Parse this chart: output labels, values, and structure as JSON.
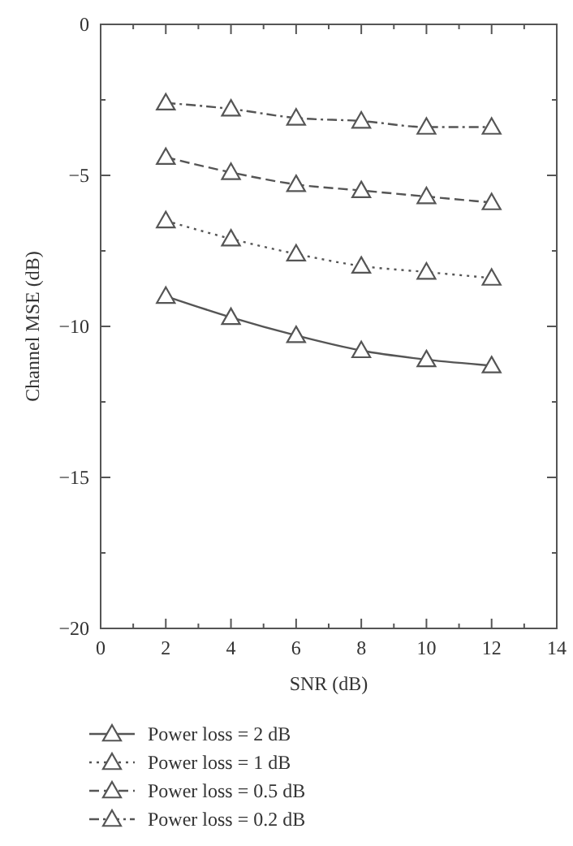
{
  "chart_data": {
    "type": "line",
    "xlabel": "SNR (dB)",
    "ylabel": "Channel MSE (dB)",
    "x": [
      2,
      4,
      6,
      8,
      10,
      12
    ],
    "series": [
      {
        "name": "Power loss = 2 dB",
        "color": "#555555",
        "line_style": "solid",
        "values": [
          -9.0,
          -9.7,
          -10.3,
          -10.8,
          -11.1,
          -11.3
        ]
      },
      {
        "name": "Power loss = 1 dB",
        "color": "#555555",
        "line_style": "dotted",
        "values": [
          -6.5,
          -7.1,
          -7.6,
          -8.0,
          -8.2,
          -8.4
        ]
      },
      {
        "name": "Power loss = 0.5 dB",
        "color": "#555555",
        "line_style": "dashed",
        "values": [
          -4.4,
          -4.9,
          -5.3,
          -5.5,
          -5.7,
          -5.9
        ]
      },
      {
        "name": "Power loss = 0.2 dB",
        "color": "#555555",
        "line_style": "dashdot",
        "values": [
          -2.6,
          -2.8,
          -3.1,
          -3.2,
          -3.4,
          -3.4
        ]
      }
    ],
    "marker": "triangle",
    "legend": "bottom",
    "grid": false,
    "xlim": [
      0,
      14
    ],
    "xticks": [
      0,
      {
        "value": 1,
        "label": null
      },
      2,
      {
        "value": 3,
        "label": null
      },
      4,
      {
        "value": 5,
        "label": null
      },
      6,
      {
        "value": 7,
        "label": null
      },
      8,
      {
        "value": 9,
        "label": null
      },
      10,
      {
        "value": 11,
        "label": null
      },
      12,
      {
        "value": 13,
        "label": null
      },
      14
    ],
    "ylim": [
      -20,
      0
    ],
    "yticks": [
      {
        "value": -20,
        "label": "−20"
      },
      {
        "value": -17.5,
        "label": null
      },
      {
        "value": -15,
        "label": "−15"
      },
      {
        "value": -12.5,
        "label": null
      },
      {
        "value": -10,
        "label": "−10"
      },
      {
        "value": -7.5,
        "label": null
      },
      {
        "value": -5,
        "label": "−5"
      },
      {
        "value": -2.5,
        "label": null
      },
      0
    ]
  }
}
